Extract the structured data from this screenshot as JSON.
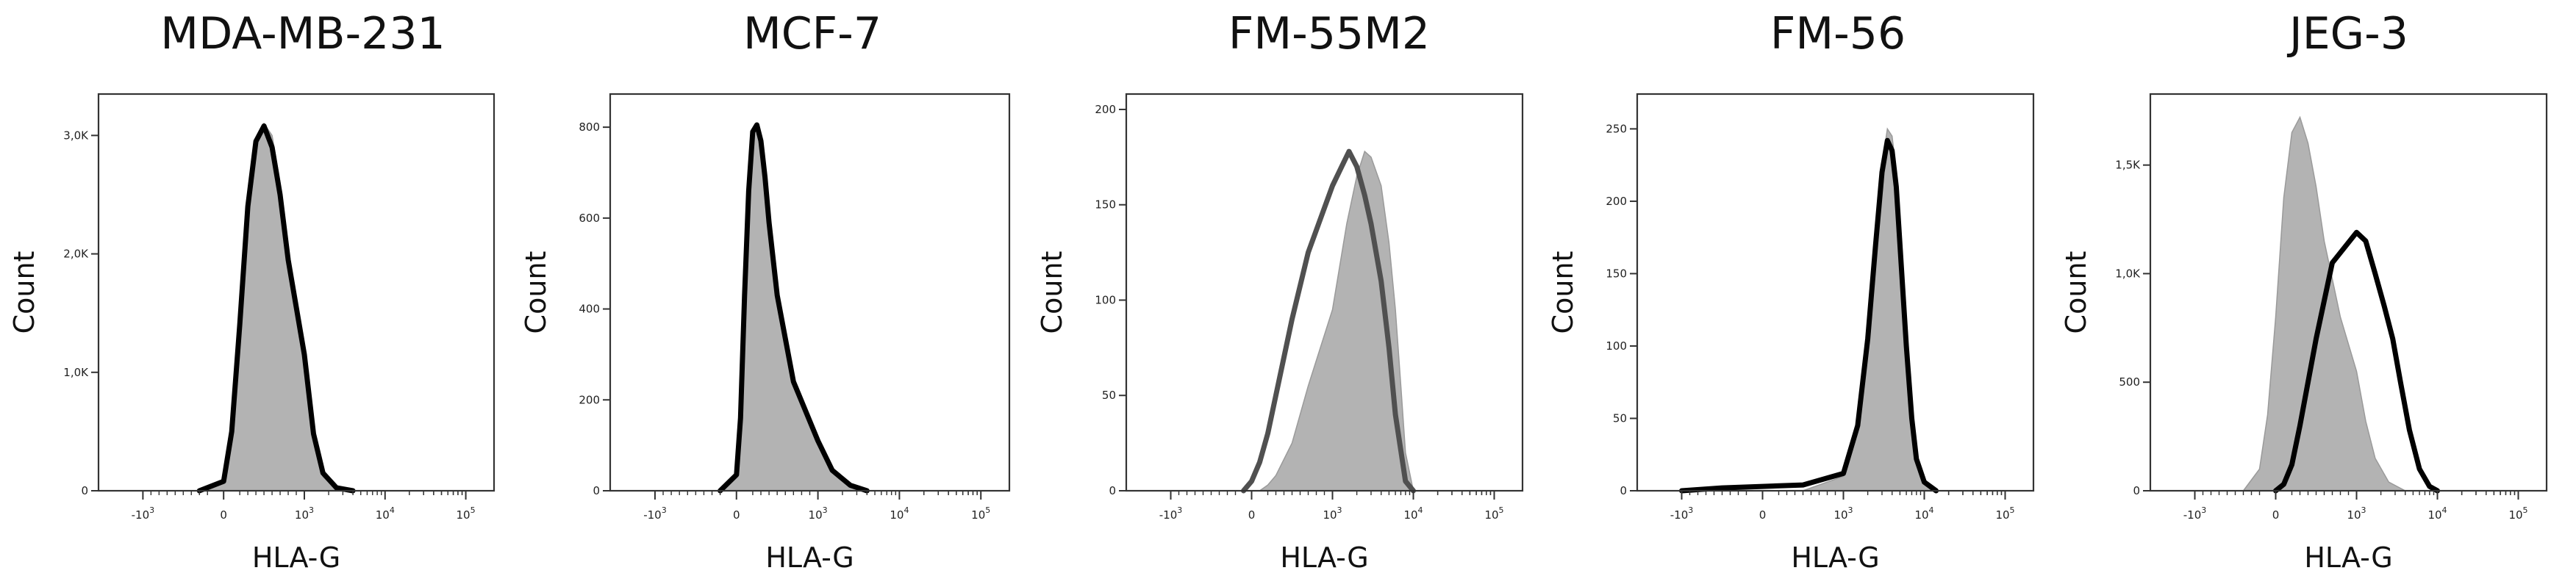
{
  "chart_data": [
    {
      "type": "area",
      "title": "MDA-MB-231",
      "xlabel": "HLA-G",
      "ylabel": "Count",
      "x_scale": "biexponential",
      "x_ticks": [
        {
          "value": -1000,
          "base": "-10",
          "exp": "3"
        },
        {
          "value": 0,
          "base": "0",
          "exp": ""
        },
        {
          "value": 1000,
          "base": "10",
          "exp": "3"
        },
        {
          "value": 10000,
          "base": "10",
          "exp": "4"
        },
        {
          "value": 100000,
          "base": "10",
          "exp": "5"
        }
      ],
      "ylim": [
        0,
        3300
      ],
      "y_ticks": [
        {
          "value": 0,
          "label": "0"
        },
        {
          "value": 1000,
          "label": "1,0K"
        },
        {
          "value": 2000,
          "label": "2,0K"
        },
        {
          "value": 3000,
          "label": "3,0K"
        }
      ],
      "series": [
        {
          "role": "control",
          "color": "#b3b3b3",
          "style": "filled",
          "x": [
            -300,
            0,
            100,
            200,
            300,
            400,
            500,
            600,
            700,
            800,
            1000,
            1300,
            1700,
            2500,
            4000
          ],
          "y": [
            0,
            60,
            420,
            1300,
            2300,
            2900,
            3100,
            3000,
            2600,
            2000,
            1150,
            450,
            120,
            20,
            0
          ]
        },
        {
          "role": "stained",
          "color": "#000000",
          "style": "line",
          "x": [
            -300,
            0,
            100,
            200,
            300,
            400,
            500,
            600,
            700,
            800,
            1000,
            1300,
            1700,
            2500,
            4000
          ],
          "y": [
            0,
            80,
            500,
            1400,
            2400,
            2950,
            3080,
            2900,
            2500,
            1950,
            1150,
            480,
            150,
            25,
            0
          ]
        }
      ]
    },
    {
      "type": "area",
      "title": "MCF-7",
      "xlabel": "HLA-G",
      "ylabel": "Count",
      "x_scale": "biexponential",
      "x_ticks": [
        {
          "value": -1000,
          "base": "-10",
          "exp": "3"
        },
        {
          "value": 0,
          "base": "0",
          "exp": ""
        },
        {
          "value": 1000,
          "base": "10",
          "exp": "3"
        },
        {
          "value": 10000,
          "base": "10",
          "exp": "4"
        },
        {
          "value": 100000,
          "base": "10",
          "exp": "5"
        }
      ],
      "ylim": [
        0,
        860
      ],
      "y_ticks": [
        {
          "value": 0,
          "label": "0"
        },
        {
          "value": 200,
          "label": "200"
        },
        {
          "value": 400,
          "label": "400"
        },
        {
          "value": 600,
          "label": "600"
        },
        {
          "value": 800,
          "label": "800"
        }
      ],
      "series": [
        {
          "role": "control",
          "color": "#b3b3b3",
          "style": "filled",
          "x": [
            -200,
            0,
            50,
            100,
            150,
            200,
            250,
            300,
            350,
            400,
            500,
            700,
            1000,
            1500,
            2500,
            4000
          ],
          "y": [
            0,
            30,
            150,
            420,
            650,
            780,
            800,
            760,
            680,
            580,
            420,
            230,
            100,
            40,
            10,
            0
          ]
        },
        {
          "role": "stained",
          "color": "#000000",
          "style": "line",
          "x": [
            -200,
            0,
            50,
            100,
            150,
            200,
            250,
            300,
            350,
            400,
            500,
            700,
            1000,
            1500,
            2500,
            4000
          ],
          "y": [
            0,
            35,
            160,
            430,
            660,
            790,
            805,
            770,
            690,
            590,
            430,
            240,
            110,
            45,
            12,
            0
          ]
        }
      ]
    },
    {
      "type": "area",
      "title": "FM-55M2",
      "xlabel": "HLA-G",
      "ylabel": "Count",
      "x_scale": "biexponential",
      "x_ticks": [
        {
          "value": -1000,
          "base": "-10",
          "exp": "3"
        },
        {
          "value": 0,
          "base": "0",
          "exp": ""
        },
        {
          "value": 1000,
          "base": "10",
          "exp": "3"
        },
        {
          "value": 10000,
          "base": "10",
          "exp": "4"
        },
        {
          "value": 100000,
          "base": "10",
          "exp": "5"
        }
      ],
      "ylim": [
        0,
        205
      ],
      "y_ticks": [
        {
          "value": 0,
          "label": "0"
        },
        {
          "value": 50,
          "label": "50"
        },
        {
          "value": 100,
          "label": "100"
        },
        {
          "value": 150,
          "label": "150"
        },
        {
          "value": 200,
          "label": "200"
        }
      ],
      "series": [
        {
          "role": "control",
          "color": "#b3b3b3",
          "style": "filled",
          "x": [
            100,
            200,
            300,
            500,
            700,
            1000,
            1500,
            2000,
            2500,
            3000,
            4000,
            5000,
            6000,
            7000,
            8000,
            10000
          ],
          "y": [
            0,
            3,
            8,
            25,
            55,
            95,
            140,
            165,
            178,
            175,
            160,
            130,
            95,
            55,
            20,
            0
          ]
        },
        {
          "role": "stained",
          "color": "#505050",
          "style": "line",
          "x": [
            -100,
            0,
            100,
            200,
            300,
            500,
            700,
            1000,
            1300,
            1600,
            2000,
            2500,
            3000,
            4000,
            5000,
            6000,
            8000,
            10000
          ],
          "y": [
            0,
            5,
            15,
            30,
            50,
            90,
            125,
            160,
            170,
            178,
            170,
            155,
            140,
            110,
            75,
            40,
            5,
            0
          ]
        }
      ]
    },
    {
      "type": "area",
      "title": "FM-56",
      "xlabel": "HLA-G",
      "ylabel": "Count",
      "x_scale": "biexponential",
      "x_ticks": [
        {
          "value": -1000,
          "base": "-10",
          "exp": "3"
        },
        {
          "value": 0,
          "base": "0",
          "exp": ""
        },
        {
          "value": 1000,
          "base": "10",
          "exp": "3"
        },
        {
          "value": 10000,
          "base": "10",
          "exp": "4"
        },
        {
          "value": 100000,
          "base": "10",
          "exp": "5"
        }
      ],
      "ylim": [
        0,
        270
      ],
      "y_ticks": [
        {
          "value": 0,
          "label": "0"
        },
        {
          "value": 50,
          "label": "50"
        },
        {
          "value": 100,
          "label": "100"
        },
        {
          "value": 150,
          "label": "150"
        },
        {
          "value": 200,
          "label": "200"
        },
        {
          "value": 250,
          "label": "250"
        }
      ],
      "series": [
        {
          "role": "control",
          "color": "#b3b3b3",
          "style": "filled",
          "x": [
            500,
            1000,
            1500,
            2000,
            2500,
            3000,
            3500,
            4000,
            4500,
            5000,
            6000,
            7000,
            8000,
            10000,
            14000
          ],
          "y": [
            0,
            10,
            40,
            100,
            170,
            225,
            250,
            245,
            220,
            180,
            110,
            55,
            25,
            8,
            0
          ]
        },
        {
          "role": "stained",
          "color": "#000000",
          "style": "line",
          "x": [
            -1000,
            -500,
            0,
            500,
            1000,
            1500,
            2000,
            2500,
            3000,
            3500,
            4000,
            4500,
            5000,
            6000,
            7000,
            8000,
            10000,
            14000
          ],
          "y": [
            0,
            2,
            3,
            4,
            12,
            45,
            105,
            170,
            220,
            242,
            235,
            210,
            170,
            100,
            50,
            22,
            6,
            0
          ]
        }
      ]
    },
    {
      "type": "area",
      "title": "JEG-3",
      "xlabel": "HLA-G",
      "ylabel": "Count",
      "x_scale": "biexponential",
      "x_ticks": [
        {
          "value": -1000,
          "base": "-10",
          "exp": "3"
        },
        {
          "value": 0,
          "base": "0",
          "exp": ""
        },
        {
          "value": 1000,
          "base": "10",
          "exp": "3"
        },
        {
          "value": 10000,
          "base": "10",
          "exp": "4"
        },
        {
          "value": 100000,
          "base": "10",
          "exp": "5"
        }
      ],
      "ylim": [
        0,
        1800
      ],
      "y_ticks": [
        {
          "value": 0,
          "label": "0"
        },
        {
          "value": 500,
          "label": "500"
        },
        {
          "value": 1000,
          "label": "1,0K"
        },
        {
          "value": 1500,
          "label": "1,5K"
        }
      ],
      "series": [
        {
          "role": "control",
          "color": "#b3b3b3",
          "style": "filled",
          "x": [
            -400,
            -200,
            -100,
            0,
            100,
            200,
            300,
            400,
            500,
            600,
            800,
            1000,
            1300,
            1700,
            2500,
            4000
          ],
          "y": [
            0,
            100,
            350,
            800,
            1350,
            1650,
            1720,
            1600,
            1400,
            1150,
            800,
            550,
            320,
            150,
            40,
            0
          ]
        },
        {
          "role": "stained",
          "color": "#000000",
          "style": "line",
          "x": [
            0,
            100,
            200,
            300,
            500,
            700,
            1000,
            1300,
            1700,
            2200,
            2800,
            3500,
            4500,
            6000,
            8000,
            10000
          ],
          "y": [
            0,
            30,
            120,
            300,
            700,
            1050,
            1190,
            1150,
            1000,
            850,
            700,
            500,
            280,
            100,
            20,
            0
          ]
        }
      ]
    }
  ]
}
